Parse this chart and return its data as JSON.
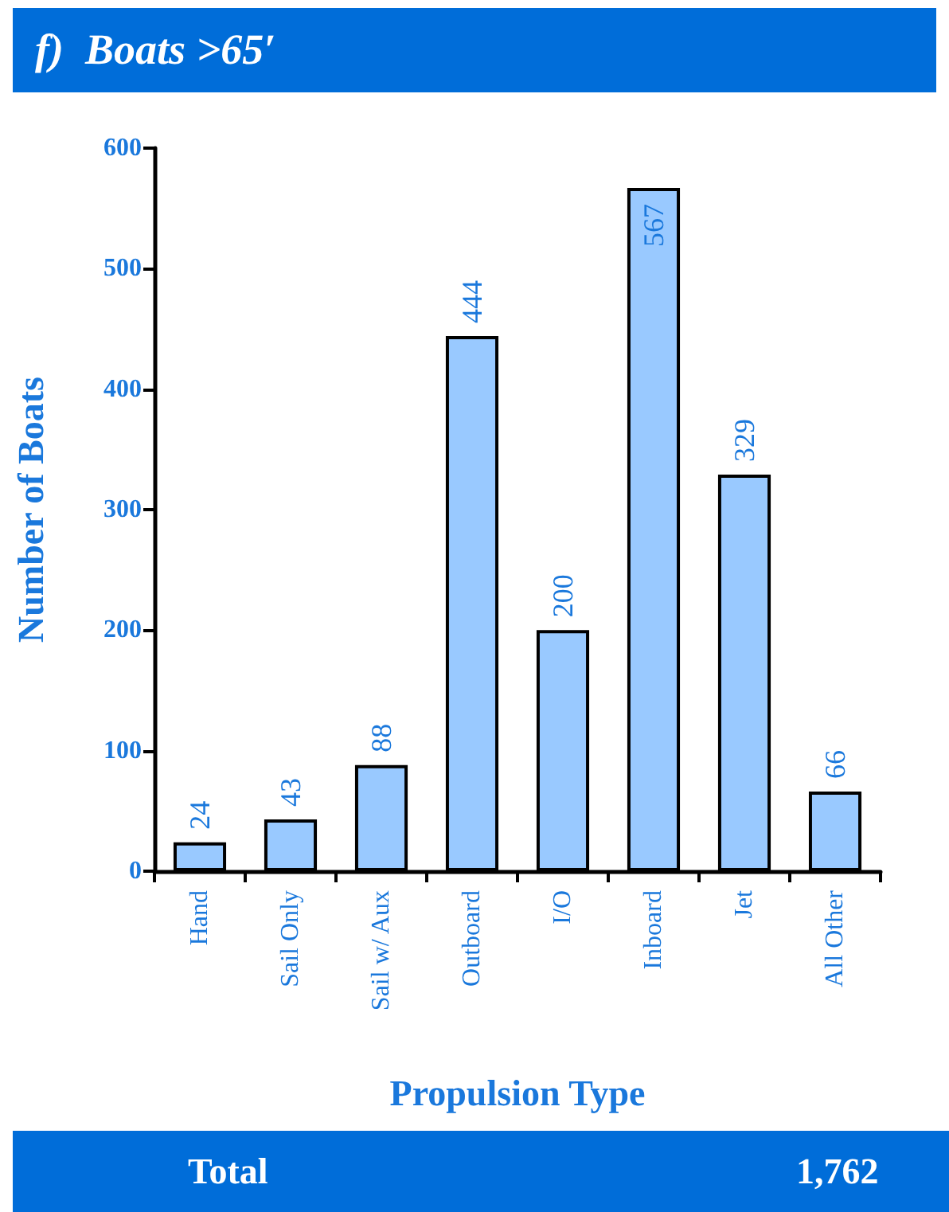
{
  "chart_data": {
    "type": "bar",
    "title": "f)  Boats >65′",
    "xlabel": "Propulsion Type",
    "ylabel": "Number of Boats",
    "categories": [
      "Hand",
      "Sail Only",
      "Sail w/ Aux",
      "Outboard",
      "I/O",
      "Inboard",
      "Jet",
      "All Other"
    ],
    "values": [
      24,
      43,
      88,
      444,
      200,
      567,
      329,
      66
    ],
    "color": "#99c9ff",
    "ylim": [
      0,
      600
    ],
    "yticks": [
      0,
      100,
      200,
      300,
      400,
      500,
      600
    ],
    "data_labels": true,
    "annotations": [
      "Total",
      "1,762"
    ]
  }
}
